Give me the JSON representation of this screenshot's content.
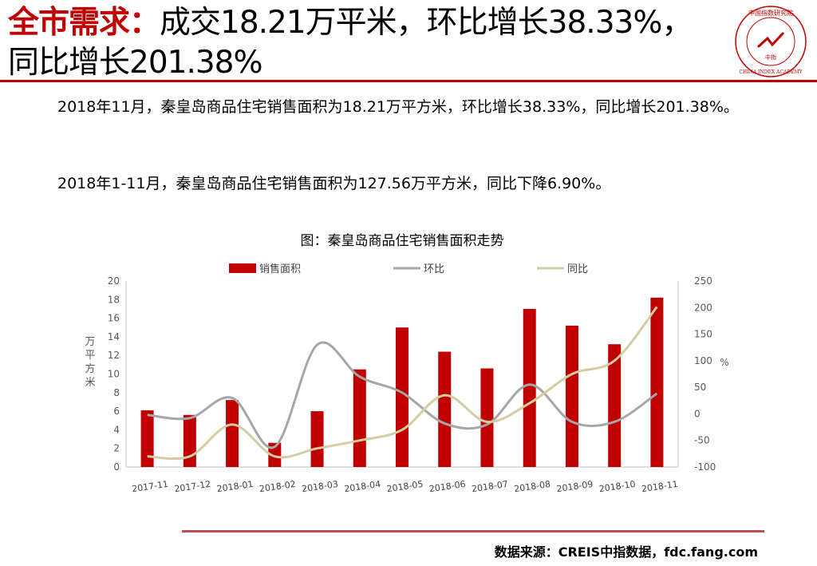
{
  "header": {
    "title_accent": "全市需求：",
    "title_rest": "成交18.21万平米，环比增长38.33%，同比增长201.38%"
  },
  "body": {
    "para1": "2018年11月，秦皇岛商品住宅销售面积为18.21万平方米，环比增长38.33%，同比增长201.38%。",
    "para2": "2018年1-11月，秦皇岛商品住宅销售面积为127.56万平方米，同比下降6.90%。"
  },
  "colors": {
    "brand_red": "#c00000",
    "bar": "#c00000",
    "mom_line": "#a6a6a6",
    "yoy_line": "#d4cca4",
    "rule": "#c0504d"
  },
  "chart_data": {
    "type": "bar",
    "title": "图：秦皇岛商品住宅销售面积走势",
    "categories": [
      "2017-11",
      "2017-12",
      "2018-01",
      "2018-02",
      "2018-03",
      "2018-04",
      "2018-05",
      "2018-06",
      "2018-07",
      "2018-08",
      "2018-09",
      "2018-10",
      "2018-11"
    ],
    "series": [
      {
        "name": "销售面积",
        "type": "bar",
        "axis": "left",
        "values": [
          6.1,
          5.6,
          7.2,
          2.6,
          6.0,
          10.5,
          15.0,
          12.4,
          10.6,
          17.0,
          15.2,
          13.2,
          18.21
        ]
      },
      {
        "name": "环比",
        "type": "line",
        "axis": "right",
        "values": [
          -2,
          -8,
          30,
          -62,
          130,
          70,
          40,
          -18,
          -20,
          55,
          -15,
          -15,
          38.33
        ]
      },
      {
        "name": "同比",
        "type": "line",
        "axis": "right",
        "values": [
          -80,
          -80,
          -20,
          -80,
          -65,
          -50,
          -30,
          35,
          -15,
          20,
          75,
          100,
          201.38
        ]
      }
    ],
    "ylabel": "万平方米",
    "ylim": [
      0,
      20
    ],
    "yticks": [
      0,
      2,
      4,
      6,
      8,
      10,
      12,
      14,
      16,
      18,
      20
    ],
    "y2label": "%",
    "y2lim": [
      -100,
      250
    ],
    "y2ticks": [
      -100,
      -50,
      0,
      50,
      100,
      150,
      200,
      250
    ],
    "legend_position": "top",
    "grid": false
  },
  "footer": {
    "source": "数据来源：CREIS中指数据，fdc.fang.com"
  }
}
